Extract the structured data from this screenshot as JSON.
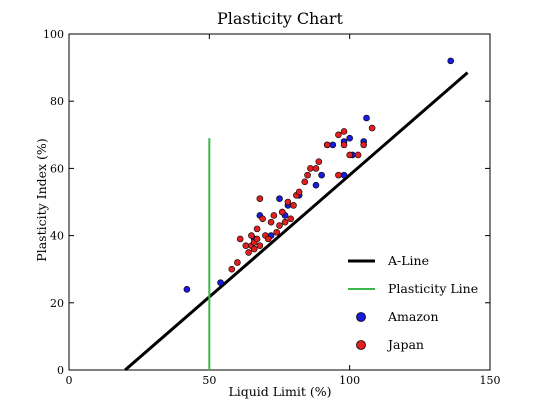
{
  "chart_data": {
    "type": "scatter",
    "title": "Plasticity Chart",
    "xlabel": "Liquid Limit (%)",
    "ylabel": "Plasticity Index (%)",
    "xlim": [
      0,
      150
    ],
    "ylim": [
      0,
      100
    ],
    "xticks": [
      "0",
      "50",
      "100",
      "150"
    ],
    "yticks": [
      "0",
      "20",
      "40",
      "60",
      "80",
      "100"
    ],
    "grid": false,
    "legend_position": "bottom-right",
    "lines": [
      {
        "name": "A-Line",
        "color": "#000000",
        "points": [
          [
            20,
            0
          ],
          [
            142,
            88.5
          ]
        ]
      },
      {
        "name": "Plasticity Line",
        "color": "#3cb84a",
        "points": [
          [
            50,
            0
          ],
          [
            50,
            69
          ]
        ]
      }
    ],
    "series": [
      {
        "name": "Amazon",
        "color": "#1a1adb",
        "points": [
          [
            42,
            24
          ],
          [
            54,
            26
          ],
          [
            66,
            39
          ],
          [
            68,
            46
          ],
          [
            72,
            40
          ],
          [
            75,
            51
          ],
          [
            76,
            47
          ],
          [
            77,
            46
          ],
          [
            78,
            49
          ],
          [
            82,
            52
          ],
          [
            88,
            55
          ],
          [
            90,
            58
          ],
          [
            92,
            67
          ],
          [
            94,
            67
          ],
          [
            98,
            58
          ],
          [
            98,
            68
          ],
          [
            100,
            69
          ],
          [
            101,
            64
          ],
          [
            105,
            68
          ],
          [
            106,
            75
          ],
          [
            136,
            92
          ]
        ]
      },
      {
        "name": "Japan",
        "color": "#e02020",
        "points": [
          [
            58,
            30
          ],
          [
            60,
            32
          ],
          [
            61,
            39
          ],
          [
            63,
            37
          ],
          [
            64,
            35
          ],
          [
            65,
            37
          ],
          [
            65,
            40
          ],
          [
            66,
            38
          ],
          [
            66,
            36
          ],
          [
            67,
            42
          ],
          [
            67,
            39
          ],
          [
            68,
            51
          ],
          [
            68,
            37
          ],
          [
            69,
            45
          ],
          [
            70,
            40
          ],
          [
            71,
            39
          ],
          [
            72,
            44
          ],
          [
            73,
            46
          ],
          [
            74,
            41
          ],
          [
            75,
            43
          ],
          [
            76,
            47
          ],
          [
            77,
            44
          ],
          [
            78,
            50
          ],
          [
            79,
            45
          ],
          [
            80,
            49
          ],
          [
            81,
            52
          ],
          [
            82,
            53
          ],
          [
            84,
            56
          ],
          [
            85,
            58
          ],
          [
            86,
            60
          ],
          [
            88,
            60
          ],
          [
            89,
            62
          ],
          [
            92,
            67
          ],
          [
            96,
            70
          ],
          [
            98,
            71
          ],
          [
            98,
            67
          ],
          [
            100,
            64
          ],
          [
            103,
            64
          ],
          [
            105,
            67
          ],
          [
            108,
            72
          ],
          [
            96,
            58
          ]
        ]
      }
    ]
  }
}
